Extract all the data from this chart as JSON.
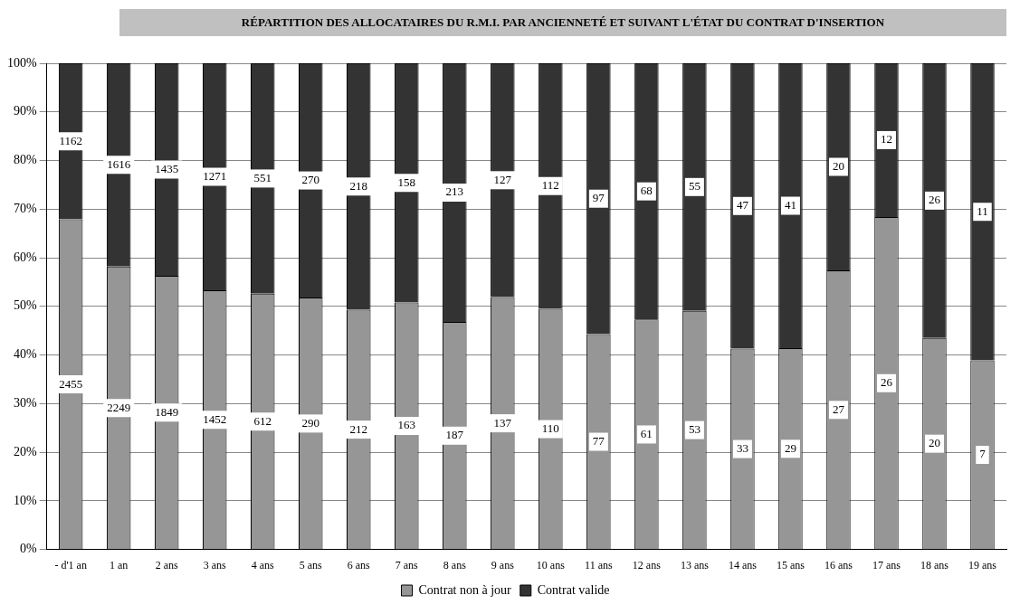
{
  "chart_data": {
    "type": "bar",
    "title": "RÉPARTITION DES ALLOCATAIRES DU R.M.I. PAR ANCIENNETÉ ET SUIVANT L'ÉTAT DU CONTRAT D'INSERTION",
    "categories": [
      "- d'1 an",
      "1 an",
      "2 ans",
      "3 ans",
      "4 ans",
      "5 ans",
      "6 ans",
      "7 ans",
      "8 ans",
      "9 ans",
      "10 ans",
      "11 ans",
      "12 ans",
      "13 ans",
      "14 ans",
      "15 ans",
      "16 ans",
      "17 ans",
      "18 ans",
      "19 ans"
    ],
    "stacked": true,
    "series": [
      {
        "name": "Contrat non à jour",
        "color": "#969696",
        "values": [
          67.9,
          58.2,
          56.3,
          53.3,
          52.6,
          51.8,
          49.3,
          50.8,
          46.8,
          51.9,
          49.5,
          44.3,
          47.3,
          49.1,
          41.3,
          41.4,
          57.4,
          68.4,
          43.5,
          38.9
        ]
      },
      {
        "name": "Contrat valide",
        "color": "#333333",
        "values": [
          32.1,
          41.8,
          43.7,
          46.7,
          47.4,
          48.2,
          50.7,
          49.2,
          53.2,
          48.1,
          50.5,
          55.7,
          52.7,
          50.9,
          58.7,
          58.6,
          42.6,
          31.6,
          56.5,
          61.1
        ]
      }
    ],
    "annotations": [
      {
        "text": "2455",
        "x": "- d'1 an",
        "y": 33.95
      },
      {
        "text": "2249",
        "x": "1 an",
        "y": 29.1
      },
      {
        "text": "1849",
        "x": "2 ans",
        "y": 28.15
      },
      {
        "text": "1452",
        "x": "3 ans",
        "y": 26.65
      },
      {
        "text": "612",
        "x": "4 ans",
        "y": 26.3
      },
      {
        "text": "290",
        "x": "5 ans",
        "y": 25.9
      },
      {
        "text": "212",
        "x": "6 ans",
        "y": 24.65
      },
      {
        "text": "163",
        "x": "7 ans",
        "y": 25.4
      },
      {
        "text": "187",
        "x": "8 ans",
        "y": 23.4
      },
      {
        "text": "137",
        "x": "9 ans",
        "y": 25.95
      },
      {
        "text": "110",
        "x": "10 ans",
        "y": 24.75
      },
      {
        "text": "77",
        "x": "11 ans",
        "y": 22.15
      },
      {
        "text": "61",
        "x": "12 ans",
        "y": 23.65
      },
      {
        "text": "53",
        "x": "13 ans",
        "y": 24.55
      },
      {
        "text": "33",
        "x": "14 ans",
        "y": 20.65
      },
      {
        "text": "29",
        "x": "15 ans",
        "y": 20.7
      },
      {
        "text": "27",
        "x": "16 ans",
        "y": 28.7
      },
      {
        "text": "26",
        "x": "17 ans",
        "y": 34.2
      },
      {
        "text": "20",
        "x": "18 ans",
        "y": 21.75
      },
      {
        "text": "7",
        "x": "19 ans",
        "y": 19.45
      },
      {
        "text": "1162",
        "x": "- d'1 an",
        "y": 83.95
      },
      {
        "text": "1616",
        "x": "1 an",
        "y": 79.1
      },
      {
        "text": "1435",
        "x": "2 ans",
        "y": 78.15
      },
      {
        "text": "1271",
        "x": "3 ans",
        "y": 76.65
      },
      {
        "text": "551",
        "x": "4 ans",
        "y": 76.3
      },
      {
        "text": "270",
        "x": "5 ans",
        "y": 75.9
      },
      {
        "text": "218",
        "x": "6 ans",
        "y": 74.65
      },
      {
        "text": "158",
        "x": "7 ans",
        "y": 75.4
      },
      {
        "text": "213",
        "x": "8 ans",
        "y": 73.4
      },
      {
        "text": "127",
        "x": "9 ans",
        "y": 75.95
      },
      {
        "text": "112",
        "x": "10 ans",
        "y": 74.75
      },
      {
        "text": "97",
        "x": "11 ans",
        "y": 72.15
      },
      {
        "text": "68",
        "x": "12 ans",
        "y": 73.65
      },
      {
        "text": "55",
        "x": "13 ans",
        "y": 74.55
      },
      {
        "text": "47",
        "x": "14 ans",
        "y": 70.65
      },
      {
        "text": "41",
        "x": "15 ans",
        "y": 70.7
      },
      {
        "text": "20",
        "x": "16 ans",
        "y": 78.7
      },
      {
        "text": "12",
        "x": "17 ans",
        "y": 84.2
      },
      {
        "text": "26",
        "x": "18 ans",
        "y": 71.75
      },
      {
        "text": "11",
        "x": "19 ans",
        "y": 69.45
      }
    ],
    "ylim": [
      0,
      100
    ],
    "yticks": [
      {
        "value": 0,
        "label": "0%"
      },
      {
        "value": 10,
        "label": "10%"
      },
      {
        "value": 20,
        "label": "20%"
      },
      {
        "value": 30,
        "label": "30%"
      },
      {
        "value": 40,
        "label": "40%"
      },
      {
        "value": 50,
        "label": "50%"
      },
      {
        "value": 60,
        "label": "60%"
      },
      {
        "value": 70,
        "label": "70%"
      },
      {
        "value": 80,
        "label": "80%"
      },
      {
        "value": 90,
        "label": "90%"
      },
      {
        "value": 100,
        "label": "100%"
      }
    ],
    "grid": "y",
    "legend": "bottom"
  }
}
